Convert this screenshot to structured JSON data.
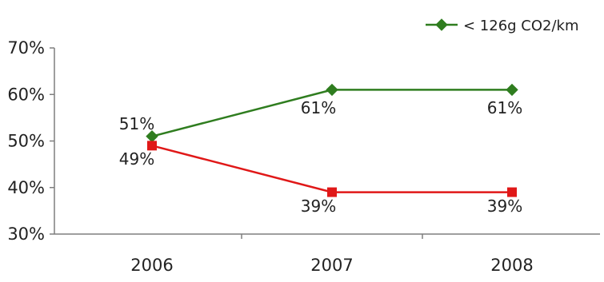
{
  "chart_data": {
    "type": "line",
    "title": "",
    "xlabel": "",
    "ylabel": "",
    "categories": [
      "2006",
      "2007",
      "2008"
    ],
    "ylim": [
      30,
      70
    ],
    "y_ticks": [
      "30%",
      "40%",
      "50%",
      "60%",
      "70%"
    ],
    "grid": false,
    "legend_position": "top-right",
    "series": [
      {
        "name": "< 126g CO2/km",
        "values": [
          51,
          61,
          61
        ],
        "labels": [
          "51%",
          "61%",
          "61%"
        ],
        "color": "#2f7d1f",
        "marker": "diamond"
      },
      {
        "values": [
          49,
          39,
          39
        ],
        "labels": [
          "49%",
          "39%",
          "39%"
        ],
        "color": "#e01818",
        "marker": "square"
      }
    ]
  }
}
